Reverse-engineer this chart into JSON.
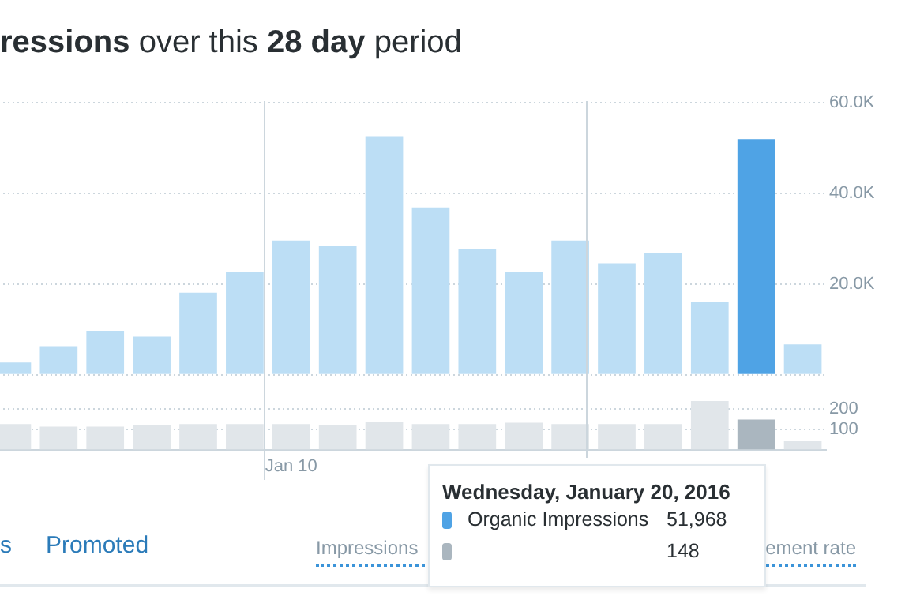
{
  "chart_data": [
    {
      "type": "bar",
      "title": "ressions over this 28 day period",
      "categories": [
        null,
        null,
        null,
        null,
        null,
        null,
        null,
        null,
        null,
        null,
        null,
        null,
        null,
        null,
        null,
        null,
        null,
        null
      ],
      "series": [
        {
          "name": "Organic Impressions",
          "colors": [
            "#bcdef5",
            "#bcdef5",
            "#bcdef5",
            "#bcdef5",
            "#bcdef5",
            "#bcdef5",
            "#bcdef5",
            "#bcdef5",
            "#bcdef5",
            "#bcdef5",
            "#bcdef5",
            "#bcdef5",
            "#bcdef5",
            "#bcdef5",
            "#bcdef5",
            "#bcdef5",
            "#4fa3e5",
            "#bcdef5"
          ],
          "values": [
            2700,
            6300,
            9700,
            8400,
            18100,
            22700,
            29600,
            28400,
            52600,
            36900,
            27700,
            22700,
            29600,
            24600,
            26900,
            16000,
            51968,
            6700
          ]
        }
      ],
      "ylim": [
        0,
        60000
      ],
      "yticks": [
        {
          "value": 0,
          "label": null
        },
        {
          "value": 20000,
          "label": "20.0K"
        },
        {
          "value": 40000,
          "label": "40.0K"
        },
        {
          "value": 60000,
          "label": "60.0K"
        }
      ],
      "grid": "y",
      "tick_labels": "y",
      "annotations": [
        "Wednesday, January 20, 2016",
        "51,968"
      ]
    },
    {
      "type": "bar",
      "categories": [
        null,
        null,
        null,
        null,
        null,
        null,
        "Jan 10",
        null,
        null,
        null,
        null,
        null,
        null,
        null,
        null,
        null,
        null,
        null
      ],
      "series": [
        {
          "colors": [
            "#e1e6ea",
            "#e1e6ea",
            "#e1e6ea",
            "#e1e6ea",
            "#e1e6ea",
            "#e1e6ea",
            "#e1e6ea",
            "#e1e6ea",
            "#e1e6ea",
            "#e1e6ea",
            "#e1e6ea",
            "#e1e6ea",
            "#e1e6ea",
            "#e1e6ea",
            "#e1e6ea",
            "#e1e6ea",
            "#aab6bf",
            "#e1e6ea"
          ],
          "values": [
            126,
            113,
            113,
            120,
            126,
            126,
            126,
            120,
            137,
            126,
            126,
            132,
            126,
            126,
            126,
            239,
            148,
            41
          ]
        }
      ],
      "ylim": [
        0,
        250
      ],
      "yticks": [
        100,
        200
      ],
      "grid": "y",
      "annotations": [
        "s",
        "Promoted",
        "Impressions",
        "ement rate",
        "148"
      ]
    }
  ]
}
